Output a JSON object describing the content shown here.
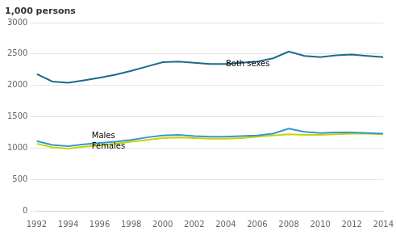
{
  "chart_data": {
    "type": "line",
    "ylabel": "1,000 persons",
    "x": [
      1992,
      1993,
      1994,
      1995,
      1996,
      1997,
      1998,
      1999,
      2000,
      2001,
      2002,
      2003,
      2004,
      2005,
      2006,
      2007,
      2008,
      2009,
      2010,
      2011,
      2012,
      2013,
      2014
    ],
    "series": [
      {
        "color": "#1a6b8a",
        "values": [
          2180,
          2060,
          2040,
          2080,
          2120,
          2170,
          2230,
          2300,
          2370,
          2380,
          2360,
          2340,
          2340,
          2360,
          2380,
          2430,
          2540,
          2470,
          2450,
          2480,
          2490,
          2470,
          2450
        ]
      },
      {
        "color": "#3399cc",
        "values": [
          1110,
          1050,
          1030,
          1060,
          1080,
          1100,
          1130,
          1170,
          1200,
          1210,
          1190,
          1180,
          1180,
          1190,
          1200,
          1230,
          1310,
          1260,
          1240,
          1250,
          1250,
          1240,
          1230
        ]
      },
      {
        "color": "#c8d400",
        "values": [
          1070,
          1010,
          990,
          1020,
          1040,
          1070,
          1100,
          1130,
          1160,
          1170,
          1160,
          1150,
          1150,
          1160,
          1180,
          1200,
          1220,
          1210,
          1210,
          1220,
          1230,
          1230,
          1220
        ]
      }
    ],
    "annotations": [
      {
        "text": "Both sexes",
        "x": 2004,
        "y": 2310
      },
      {
        "text": "Males",
        "x": 1995.5,
        "y": 1155
      },
      {
        "text": "Females",
        "x": 1995.5,
        "y": 990
      }
    ],
    "xlim": [
      1992,
      2014
    ],
    "xticks": [
      1992,
      1994,
      1996,
      1998,
      2000,
      2002,
      2004,
      2006,
      2008,
      2010,
      2012,
      2014
    ],
    "ylim": [
      0,
      3000
    ],
    "yticks": [
      0,
      500,
      1000,
      1500,
      2000,
      2500,
      3000
    ],
    "grid": true
  }
}
